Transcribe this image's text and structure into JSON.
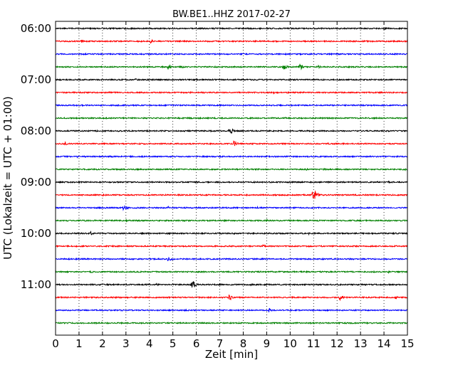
{
  "chart_data": {
    "type": "line",
    "title": "BW.BE1..HHZ 2017-02-27",
    "xlabel": "Zeit  [min]",
    "ylabel": "UTC (Lokalzeit = UTC + 01:00)",
    "xlim": [
      0,
      15
    ],
    "xticks": [
      0,
      1,
      2,
      3,
      4,
      5,
      6,
      7,
      8,
      9,
      10,
      11,
      12,
      13,
      14,
      15
    ],
    "xtick_labels": [
      "0",
      "1",
      "2",
      "3",
      "4",
      "5",
      "6",
      "7",
      "8",
      "9",
      "10",
      "11",
      "12",
      "13",
      "14",
      "15"
    ],
    "ytick_labels": [
      "06:00",
      "07:00",
      "08:00",
      "09:00",
      "10:00",
      "11:00"
    ],
    "grid": "vertical dotted",
    "colors": [
      "#000000",
      "#ff0000",
      "#0000ff",
      "#008000"
    ],
    "series": [
      {
        "start": "06:00",
        "color": "#000000",
        "events": [
          {
            "t": 14.0,
            "a": 0.3
          }
        ]
      },
      {
        "start": "06:15",
        "color": "#ff0000",
        "events": [
          {
            "t": 1.1,
            "a": 0.35
          },
          {
            "t": 4.05,
            "a": 0.4
          }
        ]
      },
      {
        "start": "06:30",
        "color": "#0000ff",
        "events": [
          {
            "t": 1.3,
            "a": 0.2
          }
        ]
      },
      {
        "start": "06:45",
        "color": "#008000",
        "events": [
          {
            "t": 4.8,
            "a": 0.55
          },
          {
            "t": 5.4,
            "a": 0.3
          },
          {
            "t": 9.7,
            "a": 0.75
          },
          {
            "t": 10.4,
            "a": 0.75
          },
          {
            "t": 11.2,
            "a": 0.3
          }
        ]
      },
      {
        "start": "07:00",
        "color": "#000000",
        "events": [
          {
            "t": 3.4,
            "a": 0.25
          },
          {
            "t": 4.8,
            "a": 0.2
          }
        ]
      },
      {
        "start": "07:15",
        "color": "#ff0000",
        "events": [
          {
            "t": 9.3,
            "a": 0.25
          }
        ]
      },
      {
        "start": "07:30",
        "color": "#0000ff",
        "events": [
          {
            "t": 2.9,
            "a": 0.25
          },
          {
            "t": 7.6,
            "a": 0.3
          }
        ]
      },
      {
        "start": "07:45",
        "color": "#008000",
        "events": [
          {
            "t": 9.8,
            "a": 0.25
          }
        ]
      },
      {
        "start": "08:00",
        "color": "#000000",
        "events": [
          {
            "t": 2.6,
            "a": 0.25
          },
          {
            "t": 7.4,
            "a": 0.95
          }
        ]
      },
      {
        "start": "08:15",
        "color": "#ff0000",
        "events": [
          {
            "t": 0.4,
            "a": 0.35
          },
          {
            "t": 7.6,
            "a": 0.6
          },
          {
            "t": 11.6,
            "a": 0.25
          }
        ]
      },
      {
        "start": "08:30",
        "color": "#0000ff",
        "events": [
          {
            "t": 0.9,
            "a": 0.3
          },
          {
            "t": 13.7,
            "a": 0.2
          }
        ]
      },
      {
        "start": "08:45",
        "color": "#008000",
        "events": [
          {
            "t": 10.7,
            "a": 0.3
          },
          {
            "t": 11.4,
            "a": 0.25
          },
          {
            "t": 14.9,
            "a": 0.2
          }
        ]
      },
      {
        "start": "09:00",
        "color": "#000000",
        "events": [
          {
            "t": 14.2,
            "a": 0.25
          }
        ]
      },
      {
        "start": "09:15",
        "color": "#ff0000",
        "events": [
          {
            "t": 2.0,
            "a": 0.2
          },
          {
            "t": 5.7,
            "a": 0.2
          },
          {
            "t": 10.95,
            "a": 1.8
          }
        ]
      },
      {
        "start": "09:30",
        "color": "#0000ff",
        "events": [
          {
            "t": 2.9,
            "a": 0.75
          },
          {
            "t": 4.8,
            "a": 0.3
          },
          {
            "t": 8.6,
            "a": 0.25
          }
        ]
      },
      {
        "start": "09:45",
        "color": "#008000",
        "events": [
          {
            "t": 3.0,
            "a": 0.25
          },
          {
            "t": 9.0,
            "a": 0.25
          }
        ]
      },
      {
        "start": "10:00",
        "color": "#000000",
        "events": [
          {
            "t": 1.5,
            "a": 0.35
          },
          {
            "t": 4.3,
            "a": 0.3
          },
          {
            "t": 7.6,
            "a": 0.3
          },
          {
            "t": 10.8,
            "a": 0.25
          }
        ]
      },
      {
        "start": "10:15",
        "color": "#ff0000",
        "events": [
          {
            "t": 8.85,
            "a": 0.4
          },
          {
            "t": 14.5,
            "a": 0.2
          }
        ]
      },
      {
        "start": "10:30",
        "color": "#0000ff",
        "events": [
          {
            "t": 4.8,
            "a": 0.6
          }
        ]
      },
      {
        "start": "10:45",
        "color": "#008000",
        "events": [
          {
            "t": 1.5,
            "a": 0.3
          },
          {
            "t": 14.2,
            "a": 0.3
          }
        ]
      },
      {
        "start": "11:00",
        "color": "#000000",
        "events": [
          {
            "t": 4.3,
            "a": 0.3
          },
          {
            "t": 5.8,
            "a": 1.2
          },
          {
            "t": 8.3,
            "a": 0.3
          },
          {
            "t": 11.4,
            "a": 0.25
          }
        ]
      },
      {
        "start": "11:15",
        "color": "#ff0000",
        "events": [
          {
            "t": 7.4,
            "a": 0.65
          },
          {
            "t": 12.1,
            "a": 0.65
          },
          {
            "t": 14.5,
            "a": 0.3
          }
        ]
      },
      {
        "start": "11:30",
        "color": "#0000ff",
        "events": [
          {
            "t": 2.8,
            "a": 0.2
          },
          {
            "t": 9.1,
            "a": 0.45
          }
        ]
      },
      {
        "start": "11:45",
        "color": "#008000",
        "events": [
          {
            "t": 4.0,
            "a": 0.2
          }
        ]
      }
    ]
  }
}
